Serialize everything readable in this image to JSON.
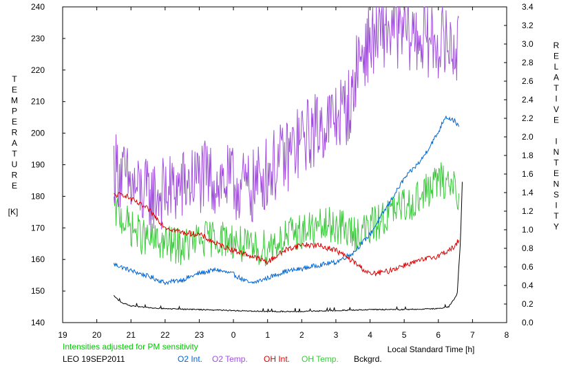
{
  "chart_data": {
    "type": "line",
    "title": "",
    "xlabel": "Local Standard Time [h]",
    "ylabel_left_letters": [
      "T",
      "E",
      "M",
      "P",
      "E",
      "R",
      "A",
      "T",
      "U",
      "R",
      "E"
    ],
    "ylabel_left_unit": "[K]",
    "ylabel_right_words": [
      [
        "R",
        "E",
        "L",
        "A",
        "T",
        "I",
        "V",
        "E"
      ],
      [
        "I",
        "N",
        "T",
        "E",
        "N",
        "S",
        "I",
        "T",
        "Y"
      ]
    ],
    "note": "Intensities adjusted for PM sensitivity",
    "station_label": "LEO 19SEP2011",
    "xlim": [
      19,
      32
    ],
    "x_tick_labels": [
      "19",
      "20",
      "21",
      "22",
      "23",
      "0",
      "1",
      "2",
      "3",
      "4",
      "5",
      "6",
      "7",
      "8"
    ],
    "y_left_lim": [
      140,
      240
    ],
    "y_left_ticks": [
      "140",
      "150",
      "160",
      "170",
      "180",
      "190",
      "200",
      "210",
      "220",
      "230",
      "240"
    ],
    "y_right_lim": [
      0,
      3.4
    ],
    "y_right_ticks": [
      "0.0",
      "0.2",
      "0.4",
      "0.6",
      "0.8",
      "1.0",
      "1.2",
      "1.4",
      "1.6",
      "1.8",
      "2.0",
      "2.2",
      "2.4",
      "2.6",
      "2.8",
      "3.0",
      "3.2",
      "3.4"
    ],
    "grid": false,
    "legend_position": "bottom",
    "series": [
      {
        "name": "O2 Int.",
        "axis": "right",
        "color": "#0064d2",
        "noise": 0.025,
        "x": [
          20.5,
          21.0,
          21.5,
          22.0,
          22.5,
          23.0,
          23.5,
          24.0,
          24.5,
          25.0,
          25.5,
          26.0,
          26.5,
          27.0,
          27.5,
          28.0,
          28.5,
          29.0,
          29.5,
          30.0,
          30.2,
          30.5,
          30.6
        ],
        "values": [
          0.63,
          0.56,
          0.5,
          0.43,
          0.46,
          0.53,
          0.57,
          0.52,
          0.42,
          0.48,
          0.55,
          0.58,
          0.62,
          0.65,
          0.75,
          0.95,
          1.25,
          1.55,
          1.75,
          2.05,
          2.22,
          2.17,
          2.1
        ]
      },
      {
        "name": "O2 Temp.",
        "axis": "left",
        "color": "#a050dc",
        "noise": 12,
        "x": [
          20.5,
          21.0,
          21.5,
          22.0,
          22.5,
          23.0,
          23.5,
          24.0,
          24.5,
          25.0,
          25.5,
          26.0,
          26.5,
          27.0,
          27.5,
          27.6,
          28.0,
          28.5,
          29.0,
          29.5,
          30.0,
          30.5,
          30.6
        ],
        "values": [
          190,
          183,
          180,
          181,
          183,
          186,
          185,
          184,
          182,
          188,
          192,
          198,
          202,
          205,
          210,
          222,
          229,
          233,
          232,
          230,
          229,
          227,
          225
        ]
      },
      {
        "name": "OH Int.",
        "axis": "right",
        "color": "#dc0000",
        "noise": 0.03,
        "x": [
          20.5,
          20.8,
          21.0,
          21.5,
          22.0,
          22.5,
          23.0,
          23.5,
          24.0,
          24.5,
          25.0,
          25.5,
          26.0,
          26.5,
          27.0,
          27.5,
          28.0,
          28.5,
          29.0,
          29.5,
          30.0,
          30.5,
          30.6
        ],
        "values": [
          1.37,
          1.38,
          1.33,
          1.22,
          1.03,
          0.97,
          0.95,
          0.85,
          0.78,
          0.72,
          0.65,
          0.78,
          0.84,
          0.83,
          0.78,
          0.66,
          0.52,
          0.55,
          0.62,
          0.67,
          0.72,
          0.82,
          0.9
        ]
      },
      {
        "name": "OH Temp.",
        "axis": "left",
        "color": "#3cc83c",
        "noise": 6,
        "x": [
          20.5,
          21.0,
          21.5,
          22.0,
          22.5,
          23.0,
          23.5,
          24.0,
          24.5,
          25.0,
          25.5,
          26.0,
          26.5,
          27.0,
          27.5,
          28.0,
          28.5,
          29.0,
          29.5,
          30.0,
          30.5,
          30.6
        ],
        "values": [
          176,
          170,
          166,
          165,
          164,
          166,
          167,
          166,
          163,
          164,
          167,
          169,
          170,
          171,
          168,
          170,
          174,
          177,
          180,
          185,
          184,
          180
        ]
      },
      {
        "name": "Bckgrd.",
        "axis": "right",
        "color": "#000000",
        "noise": 0.006,
        "x": [
          20.5,
          20.7,
          21.0,
          21.5,
          22.0,
          23.0,
          24.0,
          25.0,
          26.0,
          27.0,
          28.0,
          29.0,
          30.0,
          30.3,
          30.55,
          30.65,
          30.7
        ],
        "values": [
          0.29,
          0.22,
          0.18,
          0.16,
          0.15,
          0.14,
          0.13,
          0.12,
          0.12,
          0.13,
          0.14,
          0.14,
          0.15,
          0.17,
          0.3,
          0.9,
          1.52
        ]
      }
    ]
  }
}
